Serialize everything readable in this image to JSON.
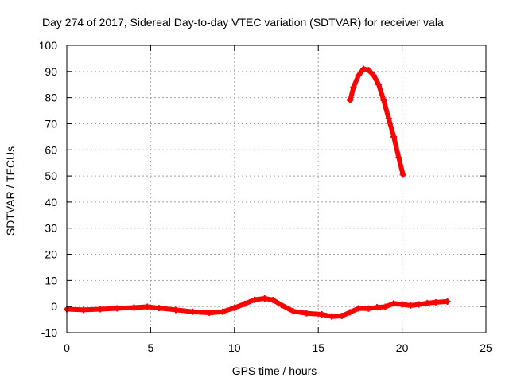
{
  "chart_data": {
    "type": "scatter",
    "title": "Day 274 of 2017, Sidereal Day-to-day VTEC variation (SDTVAR) for receiver vala",
    "xlabel": "GPS time / hours",
    "ylabel": "SDTVAR / TECUs",
    "xlim": [
      0,
      25
    ],
    "ylim": [
      -10,
      100
    ],
    "xticks": [
      0,
      5,
      10,
      15,
      20,
      25
    ],
    "yticks": [
      -10,
      0,
      10,
      20,
      30,
      40,
      50,
      60,
      70,
      80,
      90,
      100
    ],
    "grid": true,
    "legend": "none",
    "series": [
      {
        "name": "SDTVAR",
        "color": "#ff0000",
        "points": [
          [
            0,
            -1.0
          ],
          [
            1,
            -1.3
          ],
          [
            2,
            -1.0
          ],
          [
            3,
            -0.7
          ],
          [
            4,
            -0.4
          ],
          [
            4.8,
            -0.1
          ],
          [
            5.5,
            -0.6
          ],
          [
            6.5,
            -1.3
          ],
          [
            7.5,
            -2.0
          ],
          [
            8.5,
            -2.4
          ],
          [
            9.3,
            -2.0
          ],
          [
            10,
            -0.5
          ],
          [
            10.6,
            1.0
          ],
          [
            11.2,
            2.6
          ],
          [
            11.8,
            3.1
          ],
          [
            12.3,
            2.5
          ],
          [
            12.8,
            0.6
          ],
          [
            13.5,
            -1.8
          ],
          [
            14.3,
            -2.6
          ],
          [
            15.2,
            -3.0
          ],
          [
            15.8,
            -3.8
          ],
          [
            16.4,
            -3.6
          ],
          [
            16.9,
            -2.2
          ],
          [
            17.4,
            -0.7
          ],
          [
            18,
            -0.8
          ],
          [
            18.5,
            -0.3
          ],
          [
            19,
            -0.1
          ],
          [
            19.5,
            1.2
          ],
          [
            20,
            0.8
          ],
          [
            20.5,
            0.4
          ],
          [
            21,
            0.8
          ],
          [
            21.5,
            1.3
          ],
          [
            22,
            1.6
          ],
          [
            22.7,
            1.9
          ]
        ]
      },
      {
        "name": "SDTVAR",
        "color": "#ff0000",
        "points": [
          [
            16.9,
            79
          ],
          [
            17.1,
            84
          ],
          [
            17.4,
            88.5
          ],
          [
            17.7,
            91
          ],
          [
            18.0,
            90.5
          ],
          [
            18.3,
            88.5
          ],
          [
            18.6,
            85
          ],
          [
            18.9,
            79
          ],
          [
            19.2,
            72
          ],
          [
            19.5,
            65
          ],
          [
            19.8,
            57
          ],
          [
            20.05,
            50.5
          ]
        ]
      }
    ]
  }
}
